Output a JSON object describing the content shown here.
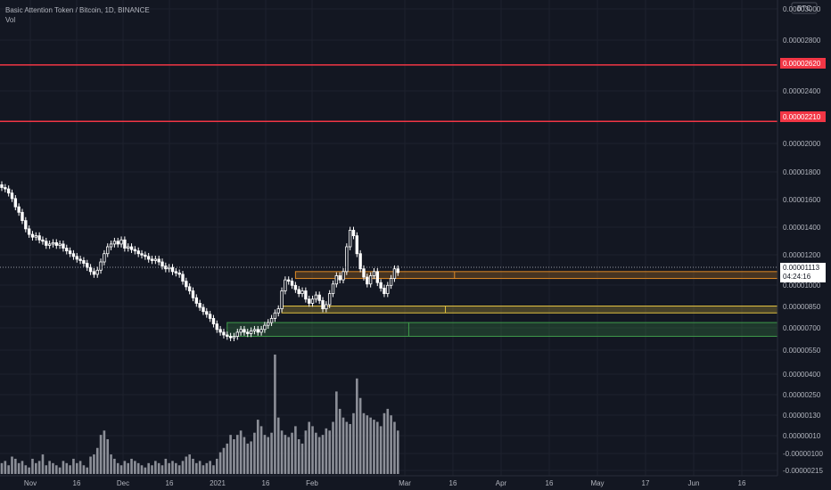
{
  "header": {
    "title": "Basic Attention Token / Bitcoin, 1D, BINANCE",
    "indicator": "Vol"
  },
  "colors": {
    "background": "#131722",
    "grid": "#1e222d",
    "text": "#b2b5be",
    "up": "#ffffff",
    "down": "#ffffff",
    "volume": "#8c8f98",
    "resistance": "#f23645",
    "price_line": "#9598a1",
    "zone_yellow": "#e0c040",
    "zone_orange": "#e08a24",
    "zone_green": "#3f9a4a"
  },
  "chart_data": {
    "type": "candlestick",
    "title": "Basic Attention Token / Bitcoin, 1D, BINANCE",
    "currency": "BTC",
    "x_tick_labels": [
      "Nov",
      "16",
      "Dec",
      "16",
      "2021",
      "16",
      "Feb",
      "Mar",
      "16",
      "Apr",
      "16",
      "May",
      "17",
      "Jun",
      "16"
    ],
    "price_axis_ticks": [
      "0.00003000",
      "0.00002800",
      "0.00002620",
      "0.00002400",
      "0.00002210",
      "0.00002000",
      "0.00001800",
      "0.00001600",
      "0.00001400",
      "0.00001200",
      "0.00001113",
      "0.00001000",
      "0.00000850",
      "0.00000700",
      "0.00000550",
      "0.00000400",
      "0.00000250",
      "0.00000130",
      "0.00000010",
      "-0.00000100",
      "-0.00000215"
    ],
    "current_price": {
      "value": "0.00001113",
      "countdown": "04:24:16"
    },
    "horizontal_levels": [
      {
        "label": "0.00002620",
        "value": 2.62e-05,
        "color": "#f23645"
      },
      {
        "label": "0.00002210",
        "value": 2.21e-05,
        "color": "#f23645"
      }
    ],
    "zones": [
      {
        "name": "orange-zone",
        "top": 1.12e-05,
        "bottom": 1.07e-05,
        "from_day": 86,
        "color": "#e08a24"
      },
      {
        "name": "yellow-zone",
        "top": 8.7e-06,
        "bottom": 8.2e-06,
        "from_day": 82,
        "color": "#e0c040"
      },
      {
        "name": "green-zone",
        "top": 7.5e-06,
        "bottom": 6.5e-06,
        "from_day": 66,
        "color": "#3f9a4a"
      }
    ],
    "close": [
      17.3,
      17.2,
      16.9,
      16.5,
      15.9,
      15.5,
      14.9,
      14.3,
      13.9,
      13.7,
      13.8,
      13.5,
      13.4,
      13.1,
      13.2,
      13.3,
      13.1,
      13.2,
      12.9,
      12.7,
      12.5,
      12.3,
      12.1,
      12.0,
      11.8,
      11.5,
      11.2,
      11.0,
      11.3,
      11.9,
      12.5,
      13.0,
      13.2,
      13.4,
      13.2,
      13.5,
      12.9,
      13.0,
      12.8,
      12.7,
      12.5,
      12.4,
      12.3,
      12.1,
      12.0,
      12.1,
      11.9,
      11.6,
      11.4,
      11.5,
      11.2,
      11.1,
      11.0,
      10.5,
      10.1,
      9.8,
      9.3,
      8.9,
      8.6,
      8.3,
      8.1,
      7.8,
      7.4,
      7.0,
      6.8,
      6.6,
      6.5,
      6.4,
      6.5,
      6.8,
      7.0,
      6.8,
      6.7,
      6.9,
      7.0,
      6.8,
      7.0,
      7.3,
      7.5,
      7.8,
      8.2,
      8.5,
      9.8,
      10.6,
      10.5,
      10.2,
      9.9,
      9.6,
      9.8,
      9.2,
      8.9,
      9.2,
      9.5,
      9.1,
      8.5,
      8.8,
      9.6,
      10.3,
      10.9,
      10.6,
      11.2,
      13.0,
      14.2,
      13.8,
      12.5,
      11.4,
      10.8,
      10.3,
      10.9,
      11.2,
      10.4,
      10.0,
      9.6,
      10.2,
      10.7,
      11.4,
      11.13
    ],
    "volume": [
      5,
      6,
      4,
      8,
      7,
      5,
      6,
      4,
      3,
      7,
      5,
      6,
      9,
      4,
      6,
      5,
      4,
      3,
      6,
      5,
      4,
      7,
      5,
      6,
      4,
      3,
      8,
      9,
      12,
      18,
      20,
      16,
      9,
      7,
      5,
      4,
      6,
      5,
      7,
      6,
      5,
      4,
      3,
      5,
      4,
      6,
      5,
      4,
      7,
      5,
      6,
      5,
      4,
      6,
      8,
      9,
      7,
      5,
      6,
      4,
      5,
      6,
      4,
      7,
      10,
      12,
      14,
      18,
      16,
      18,
      20,
      17,
      14,
      15,
      19,
      25,
      22,
      18,
      17,
      19,
      55,
      26,
      20,
      18,
      17,
      19,
      22,
      16,
      14,
      20,
      24,
      22,
      19,
      17,
      18,
      21,
      20,
      24,
      38,
      30,
      26,
      24,
      23,
      28,
      44,
      35,
      28,
      27,
      26,
      25,
      24,
      22,
      28,
      30,
      27,
      24,
      20
    ]
  }
}
